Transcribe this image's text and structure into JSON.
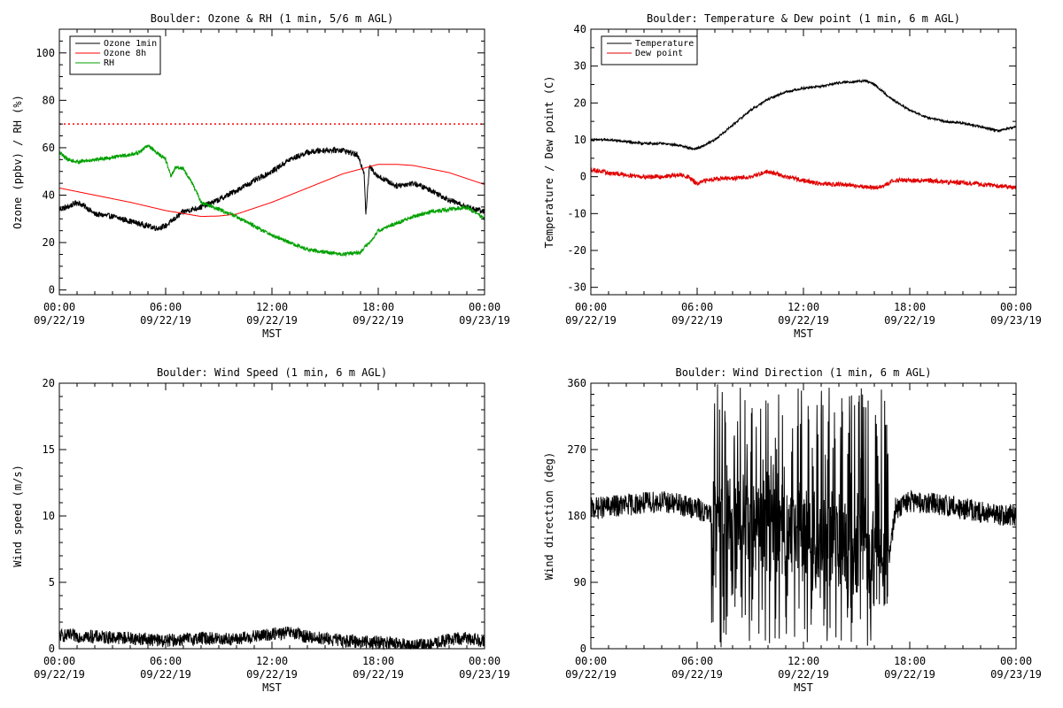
{
  "chart_data": [
    {
      "id": "ozone",
      "type": "line",
      "title": "Boulder: Ozone & RH (1 min, 5/6 m AGL)",
      "ylabel": "Ozone (ppbv) / RH (%)",
      "xlabel": "MST",
      "xlim": [
        0,
        24
      ],
      "ylim": [
        -2,
        110
      ],
      "yticks": [
        0,
        20,
        40,
        60,
        80,
        100
      ],
      "yminor_step": 5,
      "xticks": [
        {
          "t": 0,
          "time": "00:00",
          "date": "09/22/19"
        },
        {
          "t": 6,
          "time": "06:00",
          "date": "09/22/19"
        },
        {
          "t": 12,
          "time": "12:00",
          "date": "09/22/19"
        },
        {
          "t": 18,
          "time": "18:00",
          "date": "09/22/19"
        },
        {
          "t": 24,
          "time": "00:00",
          "date": "09/23/19"
        }
      ],
      "legend": {
        "position": "top-left",
        "entries": [
          "Ozone 1min",
          "Ozone 8h",
          "RH"
        ]
      },
      "reference_lines": [
        {
          "y": 70,
          "color": "#ff0000",
          "style": "dotted"
        }
      ],
      "series": [
        {
          "name": "Ozone 1min",
          "color": "#000000",
          "noise": 1.2,
          "x": [
            0,
            0.5,
            1,
            1.5,
            2,
            3,
            4,
            4.5,
            5,
            5.5,
            6,
            6.5,
            7,
            8,
            9,
            10,
            11,
            12,
            13,
            14,
            15,
            16,
            16.8,
            17.2,
            17.3,
            17.5,
            18,
            19,
            20,
            21,
            22,
            23,
            24
          ],
          "y": [
            34,
            35,
            37,
            35,
            32,
            31,
            29,
            28,
            27,
            26,
            27,
            30,
            33,
            35,
            38,
            42,
            46,
            50,
            55,
            58,
            59,
            59,
            57,
            50,
            32,
            52,
            48,
            44,
            45,
            42,
            38,
            35,
            33
          ]
        },
        {
          "name": "Ozone 8h",
          "color": "#ff0000",
          "noise": 0,
          "x": [
            0,
            2,
            4,
            6,
            8,
            9,
            10,
            12,
            14,
            16,
            18,
            19,
            20,
            22,
            24
          ],
          "y": [
            43,
            40,
            37,
            33.5,
            31,
            31.2,
            32,
            37,
            43,
            49,
            53,
            53,
            52.5,
            49.5,
            44.5
          ]
        },
        {
          "name": "RH",
          "color": "#00a000",
          "noise": 0.8,
          "x": [
            0,
            0.5,
            1,
            2,
            3,
            4,
            4.5,
            5,
            5.5,
            6,
            6.3,
            6.6,
            7,
            7.5,
            8,
            9,
            10,
            11,
            12,
            13,
            14,
            15,
            16,
            17,
            17.5,
            18,
            19,
            20,
            21,
            22,
            23,
            24
          ],
          "y": [
            58,
            55,
            54,
            55,
            56,
            57,
            58,
            61,
            58,
            55,
            48,
            52,
            51,
            45,
            37,
            34,
            31,
            27,
            23,
            20,
            17,
            16,
            15,
            16,
            20,
            25,
            28,
            31,
            33,
            34,
            35,
            30
          ]
        }
      ]
    },
    {
      "id": "temp",
      "type": "line",
      "title": "Boulder: Temperature & Dew point (1 min, 6 m AGL)",
      "ylabel": "Temperature / Dew point (C)",
      "xlabel": "MST",
      "xlim": [
        0,
        24
      ],
      "ylim": [
        -32,
        40
      ],
      "yticks": [
        -30,
        -20,
        -10,
        0,
        10,
        20,
        30,
        40
      ],
      "yminor_step": 5,
      "xticks": [
        {
          "t": 0,
          "time": "00:00",
          "date": "09/22/19"
        },
        {
          "t": 6,
          "time": "06:00",
          "date": "09/22/19"
        },
        {
          "t": 12,
          "time": "12:00",
          "date": "09/22/19"
        },
        {
          "t": 18,
          "time": "18:00",
          "date": "09/22/19"
        },
        {
          "t": 24,
          "time": "00:00",
          "date": "09/23/19"
        }
      ],
      "legend": {
        "position": "top-left",
        "entries": [
          "Temperature",
          "Dew point"
        ]
      },
      "reference_lines": [],
      "series": [
        {
          "name": "Temperature",
          "color": "#000000",
          "noise": 0.3,
          "x": [
            0,
            1,
            2,
            3,
            4,
            5,
            5.8,
            6.2,
            7,
            8,
            9,
            10,
            11,
            12,
            13,
            14,
            15,
            15.5,
            16,
            17,
            18,
            19,
            20,
            21,
            22,
            23,
            23.5,
            24
          ],
          "y": [
            10,
            10,
            9.5,
            9,
            9,
            8.5,
            7.5,
            8,
            10,
            14,
            18,
            21,
            23,
            24,
            24.5,
            25.5,
            25.8,
            26,
            25,
            21,
            18,
            16,
            15,
            14.5,
            13.5,
            12.5,
            13,
            13.5
          ]
        },
        {
          "name": "Dew point",
          "color": "#e00000",
          "noise": 0.6,
          "x": [
            0,
            1,
            2,
            3,
            4,
            5,
            5.5,
            6,
            6.5,
            7,
            8,
            9,
            10,
            11,
            12,
            13,
            14,
            15,
            16,
            16.6,
            17,
            18,
            19,
            20,
            21,
            22,
            23,
            24
          ],
          "y": [
            2,
            1,
            0.5,
            0,
            0,
            0.5,
            0,
            -2,
            -1,
            -0.5,
            -0.5,
            0,
            1.5,
            0,
            -1,
            -2,
            -2,
            -2.5,
            -3,
            -2.5,
            -1,
            -1,
            -1,
            -1.5,
            -1.5,
            -2,
            -2.5,
            -3
          ]
        }
      ]
    },
    {
      "id": "wspd",
      "type": "line",
      "title": "Boulder: Wind Speed (1 min, 6 m AGL)",
      "ylabel": "Wind speed (m/s)",
      "xlabel": "MST",
      "xlim": [
        0,
        24
      ],
      "ylim": [
        0,
        20
      ],
      "yticks": [
        0,
        5,
        10,
        15,
        20
      ],
      "yminor_step": 1,
      "xticks": [
        {
          "t": 0,
          "time": "00:00",
          "date": "09/22/19"
        },
        {
          "t": 6,
          "time": "06:00",
          "date": "09/22/19"
        },
        {
          "t": 12,
          "time": "12:00",
          "date": "09/22/19"
        },
        {
          "t": 18,
          "time": "18:00",
          "date": "09/22/19"
        },
        {
          "t": 24,
          "time": "00:00",
          "date": "09/23/19"
        }
      ],
      "legend": null,
      "reference_lines": [],
      "series": [
        {
          "name": "Wind speed",
          "color": "#000000",
          "noise": 0.5,
          "floor": 0,
          "x": [
            0,
            2,
            4,
            6,
            8,
            10,
            12,
            13,
            14,
            16,
            18,
            20,
            21,
            22,
            23,
            24
          ],
          "y": [
            1,
            0.9,
            0.8,
            0.6,
            0.8,
            0.7,
            1.1,
            1.2,
            0.9,
            0.6,
            0.5,
            0.2,
            0.3,
            0.7,
            0.8,
            0.6
          ]
        }
      ]
    },
    {
      "id": "wdir",
      "type": "line",
      "title": "Boulder: Wind Direction (1 min, 6 m AGL)",
      "ylabel": "Wind direction (deg)",
      "xlabel": "MST",
      "xlim": [
        0,
        24
      ],
      "ylim": [
        0,
        360
      ],
      "yticks": [
        0,
        90,
        180,
        270,
        360
      ],
      "yminor_step": 15,
      "xticks": [
        {
          "t": 0,
          "time": "00:00",
          "date": "09/22/19"
        },
        {
          "t": 6,
          "time": "06:00",
          "date": "09/22/19"
        },
        {
          "t": 12,
          "time": "12:00",
          "date": "09/22/19"
        },
        {
          "t": 18,
          "time": "18:00",
          "date": "09/22/19"
        },
        {
          "t": 24,
          "time": "00:00",
          "date": "09/23/19"
        }
      ],
      "legend": null,
      "reference_lines": [],
      "series": [
        {
          "name": "Wind direction",
          "color": "#000000",
          "noise": 15,
          "erratic": [
            [
              6.8,
              16.8
            ]
          ],
          "floor": 0,
          "ceil": 360,
          "x": [
            0,
            2,
            4,
            6,
            6.8,
            12,
            16.8,
            17.2,
            18,
            20,
            22,
            24
          ],
          "y": [
            190,
            195,
            200,
            190,
            180,
            150,
            120,
            190,
            200,
            195,
            185,
            180
          ]
        }
      ]
    }
  ]
}
